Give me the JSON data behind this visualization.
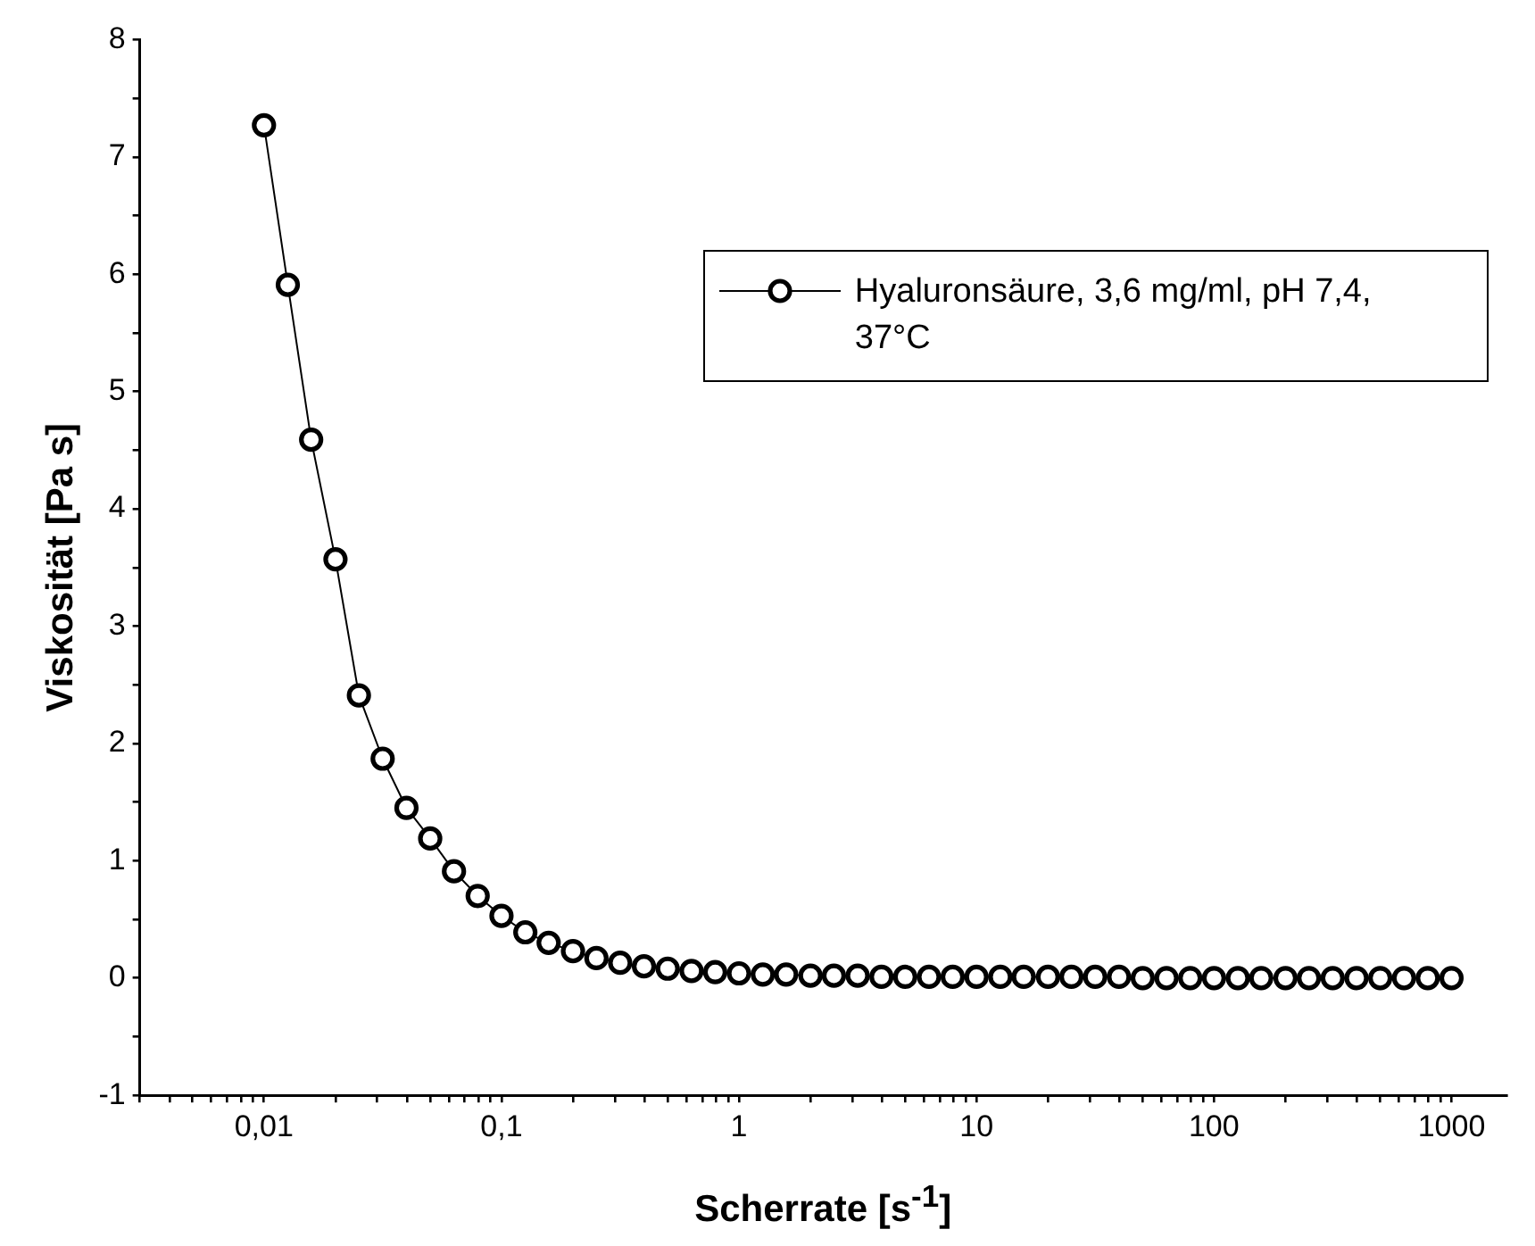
{
  "chart_data": {
    "type": "line",
    "xlabel": "Scherrate [s$^{-1}$]",
    "ylabel": "Viskosität [Pa s]",
    "log": "x",
    "marker": "circle",
    "line_style": "solid",
    "legend": "top right",
    "x": [
      0.01,
      0.0126,
      0.0158,
      0.02,
      0.0251,
      0.0316,
      0.0398,
      0.0501,
      0.0631,
      0.0794,
      0.1,
      0.126,
      0.158,
      0.2,
      0.251,
      0.316,
      0.398,
      0.501,
      0.631,
      0.794,
      1,
      1.26,
      1.58,
      2,
      2.51,
      3.16,
      3.98,
      5.01,
      6.31,
      7.94,
      10,
      12.6,
      15.8,
      20,
      25.1,
      31.6,
      39.8,
      50.1,
      63.1,
      79.4,
      100,
      126,
      158,
      200,
      251,
      316,
      398,
      501,
      631,
      794,
      1000
    ],
    "series": [
      {
        "name": "Hyaluronsäure, 3,6 mg/ml, pH 7,4, 37°C",
        "color": "#000000",
        "values": [
          7.27,
          5.91,
          4.59,
          3.57,
          2.41,
          1.87,
          1.45,
          1.19,
          0.91,
          0.7,
          0.53,
          0.39,
          0.3,
          0.23,
          0.17,
          0.13,
          0.1,
          0.08,
          0.06,
          0.05,
          0.04,
          0.03,
          0.03,
          0.02,
          0.02,
          0.02,
          0.01,
          0.01,
          0.01,
          0.01,
          0.01,
          0.01,
          0.01,
          0.01,
          0.01,
          0.01,
          0.01,
          0,
          0,
          0,
          0,
          0,
          0,
          0,
          0,
          0,
          0,
          0,
          0,
          0,
          0
        ]
      }
    ],
    "xlim": [
      0.003,
      1700
    ],
    "xticks": [
      {
        "value": 0.003,
        "label": null
      },
      {
        "value": 0.004,
        "label": null
      },
      {
        "value": 0.005,
        "label": null
      },
      {
        "value": 0.006,
        "label": null
      },
      {
        "value": 0.007,
        "label": null
      },
      {
        "value": 0.008,
        "label": null
      },
      {
        "value": 0.009,
        "label": null
      },
      {
        "value": 0.01,
        "label": "0,01"
      },
      {
        "value": 0.02,
        "label": null
      },
      {
        "value": 0.03,
        "label": null
      },
      {
        "value": 0.04,
        "label": null
      },
      {
        "value": 0.05,
        "label": null
      },
      {
        "value": 0.06,
        "label": null
      },
      {
        "value": 0.07,
        "label": null
      },
      {
        "value": 0.08,
        "label": null
      },
      {
        "value": 0.09,
        "label": null
      },
      {
        "value": 0.1,
        "label": "0,1"
      },
      {
        "value": 0.2,
        "label": null
      },
      {
        "value": 0.3,
        "label": null
      },
      {
        "value": 0.4,
        "label": null
      },
      {
        "value": 0.5,
        "label": null
      },
      {
        "value": 0.6,
        "label": null
      },
      {
        "value": 0.7,
        "label": null
      },
      {
        "value": 0.8,
        "label": null
      },
      {
        "value": 0.9,
        "label": null
      },
      1,
      {
        "value": 2,
        "label": null
      },
      {
        "value": 3,
        "label": null
      },
      {
        "value": 4,
        "label": null
      },
      {
        "value": 5,
        "label": null
      },
      {
        "value": 6,
        "label": null
      },
      {
        "value": 7,
        "label": null
      },
      {
        "value": 8,
        "label": null
      },
      {
        "value": 9,
        "label": null
      },
      10,
      {
        "value": 20,
        "label": null
      },
      {
        "value": 30,
        "label": null
      },
      {
        "value": 40,
        "label": null
      },
      {
        "value": 50,
        "label": null
      },
      {
        "value": 60,
        "label": null
      },
      {
        "value": 70,
        "label": null
      },
      {
        "value": 80,
        "label": null
      },
      {
        "value": 90,
        "label": null
      },
      100,
      {
        "value": 200,
        "label": null
      },
      {
        "value": 300,
        "label": null
      },
      {
        "value": 400,
        "label": null
      },
      {
        "value": 500,
        "label": null
      },
      {
        "value": 600,
        "label": null
      },
      {
        "value": 700,
        "label": null
      },
      {
        "value": 800,
        "label": null
      },
      {
        "value": 900,
        "label": null
      },
      1000
    ],
    "ylim": [
      -1,
      8
    ],
    "yticks": [
      -1,
      {
        "value": -0.5,
        "label": null
      },
      0,
      {
        "value": 0.5,
        "label": null
      },
      1,
      {
        "value": 1.5,
        "label": null
      },
      2,
      {
        "value": 2.5,
        "label": null
      },
      3,
      {
        "value": 3.5,
        "label": null
      },
      4,
      {
        "value": 4.5,
        "label": null
      },
      5,
      {
        "value": 5.5,
        "label": null
      },
      6,
      {
        "value": 6.5,
        "label": null
      },
      7,
      {
        "value": 7.5,
        "label": null
      },
      8
    ]
  }
}
